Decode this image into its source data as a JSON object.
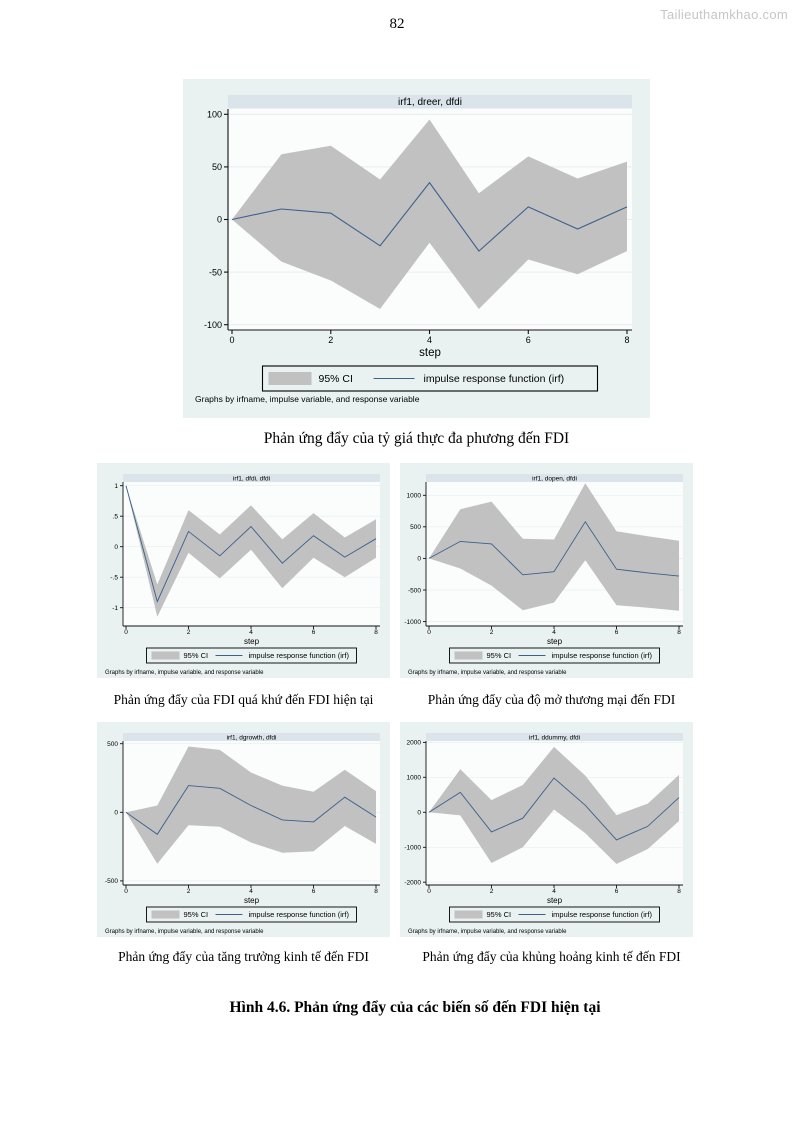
{
  "page": {
    "number": "82",
    "watermark": "Tailieuthamkhao.com",
    "figure_title": "Hình 4.6. Phản ứng đẩy của các biến số đến FDI hiện tại"
  },
  "captions": {
    "dreer": "Phản ứng đẩy của tỷ giá thực đa phương đến FDI",
    "dfdi": "Phản ứng đẩy của FDI quá khứ đến FDI hiện tại",
    "dopen": "Phản ứng đẩy của độ mở thương mại đến FDI",
    "dgrowth": "Phản ứng đẩy của tăng trưởng kinh tế đến FDI",
    "ddummy": "Phản ứng đẩy của khủng hoảng kinh tế đến FDI"
  },
  "chart_common": {
    "xlabel": "step",
    "xticks": [
      0,
      2,
      4,
      6,
      8
    ],
    "legend": {
      "ci_label": "95% CI",
      "irf_label": "impulse response function (irf)"
    },
    "legend_position": "bottom",
    "grid": true,
    "footnote": "Graphs by irfname, impulse variable, and response variable",
    "colors": {
      "graph_bg": "#e9f1f1",
      "title_strip": "#dae4ea",
      "plot_bg": "#fbfdfd",
      "grid": "#e6eded",
      "ci_band": "#c1c1c1",
      "irf_line": "#3a608c",
      "axis": "#111111"
    }
  },
  "chart_data": [
    {
      "type": "line",
      "id": "dreer",
      "title": "irf1, dreer, dfdi",
      "x": [
        0,
        1,
        2,
        3,
        4,
        5,
        6,
        7,
        8
      ],
      "series": [
        {
          "name": "irf",
          "values": [
            0,
            10,
            6,
            -25,
            35,
            -30,
            12,
            -9,
            12
          ]
        },
        {
          "name": "ci_upper",
          "values": [
            0,
            62,
            70,
            38,
            95,
            25,
            60,
            39,
            55
          ]
        },
        {
          "name": "ci_lower",
          "values": [
            0,
            -40,
            -58,
            -85,
            -22,
            -85,
            -38,
            -52,
            -30
          ]
        }
      ],
      "ylim": [
        -105,
        105
      ],
      "yticks": [
        100,
        50,
        0,
        -50,
        -100
      ],
      "ytick_labels": [
        "100",
        "50",
        "0",
        "-50",
        "-100"
      ]
    },
    {
      "type": "line",
      "id": "dfdi",
      "title": "irf1, dfdi, dfdi",
      "x": [
        0,
        1,
        2,
        3,
        4,
        5,
        6,
        7,
        8
      ],
      "series": [
        {
          "name": "irf",
          "values": [
            1,
            -0.9,
            0.25,
            -0.15,
            0.33,
            -0.27,
            0.18,
            -0.17,
            0.13
          ]
        },
        {
          "name": "ci_upper",
          "values": [
            1,
            -0.62,
            0.6,
            0.2,
            0.68,
            0.12,
            0.55,
            0.15,
            0.45
          ]
        },
        {
          "name": "ci_lower",
          "values": [
            1,
            -1.15,
            -0.1,
            -0.52,
            -0.05,
            -0.68,
            -0.18,
            -0.5,
            -0.18
          ]
        }
      ],
      "ylim": [
        -1.3,
        1.06
      ],
      "yticks": [
        1,
        0.5,
        0,
        -0.5,
        -1
      ],
      "ytick_labels": [
        "1",
        ".5",
        "0",
        "-.5",
        "-1"
      ]
    },
    {
      "type": "line",
      "id": "dopen",
      "title": "irf1, dopen, dfdi",
      "x": [
        0,
        1,
        2,
        3,
        4,
        5,
        6,
        7,
        8
      ],
      "series": [
        {
          "name": "irf",
          "values": [
            0,
            270,
            230,
            -260,
            -210,
            580,
            -170,
            -230,
            -280
          ]
        },
        {
          "name": "ci_upper",
          "values": [
            0,
            780,
            900,
            310,
            300,
            1190,
            430,
            350,
            280
          ]
        },
        {
          "name": "ci_lower",
          "values": [
            0,
            -160,
            -430,
            -820,
            -700,
            -30,
            -740,
            -780,
            -830
          ]
        }
      ],
      "ylim": [
        -1070,
        1210
      ],
      "yticks": [
        1000,
        500,
        0,
        -500,
        -1000
      ],
      "ytick_labels": [
        "1000",
        "500",
        "0",
        "-500",
        "-1000"
      ]
    },
    {
      "type": "line",
      "id": "dgrowth",
      "title": "irf1, dgrowth, dfdi",
      "x": [
        0,
        1,
        2,
        3,
        4,
        5,
        6,
        7,
        8
      ],
      "series": [
        {
          "name": "irf",
          "values": [
            0,
            -160,
            195,
            175,
            50,
            -55,
            -70,
            110,
            -35
          ]
        },
        {
          "name": "ci_upper",
          "values": [
            0,
            50,
            480,
            455,
            290,
            195,
            150,
            310,
            155
          ]
        },
        {
          "name": "ci_lower",
          "values": [
            0,
            -375,
            -95,
            -105,
            -220,
            -295,
            -285,
            -100,
            -230
          ]
        }
      ],
      "ylim": [
        -530,
        520
      ],
      "yticks": [
        500,
        0,
        -500
      ],
      "ytick_labels": [
        "500",
        "0",
        "-500"
      ]
    },
    {
      "type": "line",
      "id": "ddummy",
      "title": "irf1, ddummy, dfdi",
      "x": [
        0,
        1,
        2,
        3,
        4,
        5,
        6,
        7,
        8
      ],
      "series": [
        {
          "name": "irf",
          "values": [
            0,
            570,
            -560,
            -170,
            980,
            200,
            -790,
            -400,
            420
          ]
        },
        {
          "name": "ci_upper",
          "values": [
            0,
            1230,
            350,
            780,
            1870,
            1050,
            -80,
            250,
            1070
          ]
        },
        {
          "name": "ci_lower",
          "values": [
            0,
            -90,
            -1450,
            -1000,
            80,
            -600,
            -1480,
            -1050,
            -250
          ]
        }
      ],
      "ylim": [
        -2080,
        2040
      ],
      "yticks": [
        2000,
        1000,
        0,
        -1000,
        -2000
      ],
      "ytick_labels": [
        "2000",
        "1000",
        "0",
        "-1000",
        "-2000"
      ]
    }
  ]
}
